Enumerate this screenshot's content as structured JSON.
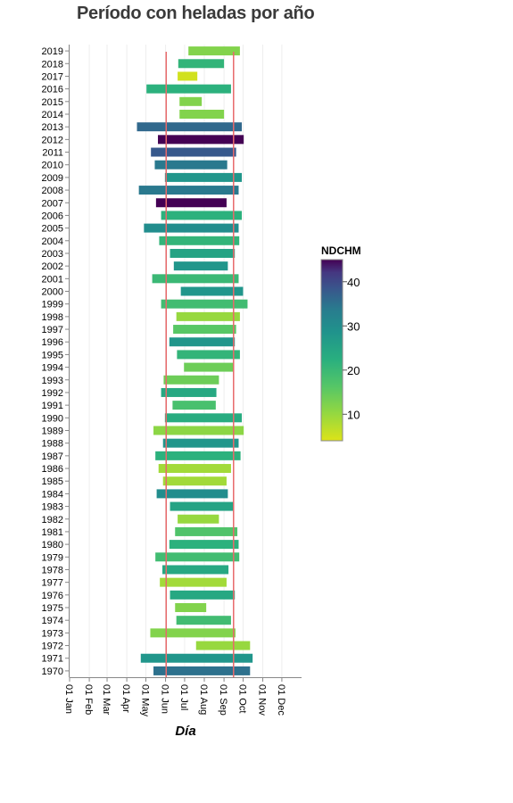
{
  "chart_data": {
    "type": "bar",
    "orientation": "horizontal-range",
    "title": "Período con heladas por año",
    "xlabel": "Día",
    "ylabel": "",
    "x_ticks": [
      "01 Jan",
      "01 Feb",
      "01 Mar",
      "01 Apr",
      "01 May",
      "01 Jun",
      "01 Jul",
      "01 Aug",
      "01 Sep",
      "01 Oct",
      "01 Nov",
      "01 Dec"
    ],
    "x_domain_days": [
      0,
      365
    ],
    "reference_lines_day": [
      152,
      258
    ],
    "reference_line_color": "#e8696b",
    "grid": "vertical",
    "legend": {
      "title": "NDCHM",
      "position": "right",
      "range": [
        4,
        45
      ],
      "ticks": [
        10,
        20,
        30,
        40
      ]
    },
    "years": [
      "2019",
      "2018",
      "2017",
      "2016",
      "2015",
      "2014",
      "2013",
      "2012",
      "2011",
      "2010",
      "2009",
      "2008",
      "2007",
      "2006",
      "2005",
      "2004",
      "2003",
      "2002",
      "2001",
      "2000",
      "1999",
      "1998",
      "1997",
      "1996",
      "1995",
      "1994",
      "1993",
      "1992",
      "1991",
      "1990",
      "1989",
      "1988",
      "1987",
      "1986",
      "1985",
      "1984",
      "1983",
      "1982",
      "1981",
      "1980",
      "1979",
      "1978",
      "1977",
      "1976",
      "1975",
      "1974",
      "1973",
      "1972",
      "1971",
      "1970"
    ],
    "start_day": [
      187,
      171,
      170,
      121,
      173,
      173,
      106,
      139,
      128,
      134,
      150,
      109,
      136,
      144,
      117,
      141,
      158,
      164,
      130,
      175,
      144,
      168,
      163,
      157,
      169,
      180,
      148,
      144,
      162,
      150,
      132,
      147,
      135,
      140,
      147,
      137,
      158,
      170,
      166,
      157,
      135,
      146,
      142,
      158,
      166,
      168,
      127,
      199,
      112,
      132
    ],
    "end_day": [
      268,
      243,
      201,
      254,
      208,
      243,
      271,
      274,
      262,
      248,
      271,
      266,
      247,
      271,
      266,
      267,
      260,
      249,
      266,
      273,
      280,
      268,
      262,
      260,
      268,
      258,
      235,
      231,
      230,
      271,
      274,
      266,
      269,
      254,
      247,
      249,
      258,
      235,
      264,
      266,
      267,
      250,
      247,
      260,
      215,
      254,
      261,
      284,
      288,
      284
    ],
    "values": [
      12,
      21,
      5,
      22,
      12,
      12,
      36,
      45,
      38,
      34,
      28,
      34,
      45,
      22,
      30,
      21,
      25,
      28,
      20,
      28,
      19,
      10,
      16,
      28,
      21,
      14,
      14,
      24,
      18,
      23,
      11,
      28,
      22,
      9,
      9,
      30,
      25,
      10,
      17,
      22,
      19,
      24,
      9,
      24,
      12,
      19,
      12,
      10,
      28,
      35
    ]
  }
}
